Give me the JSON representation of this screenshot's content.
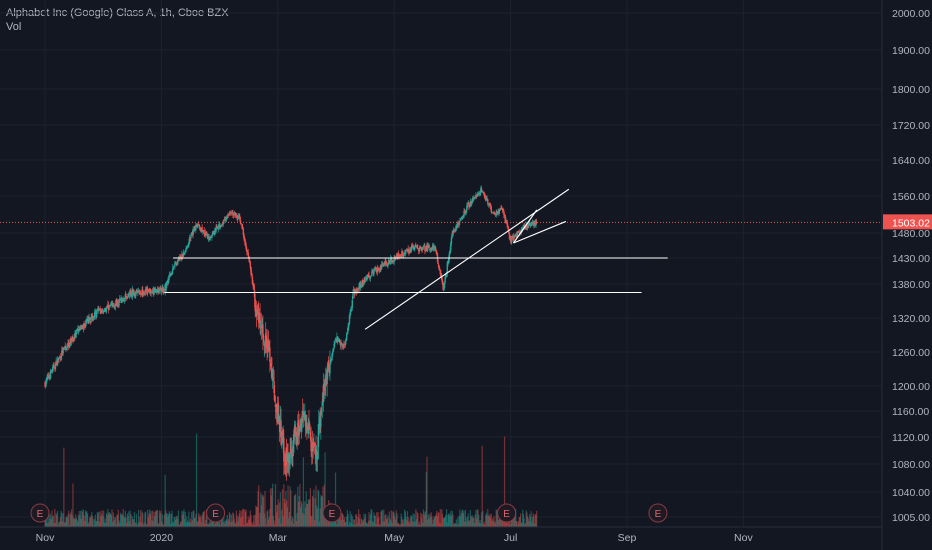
{
  "chart_data": {
    "type": "candlestick",
    "title": "Alphabet Inc (Google) Class A, 1h, Cboe BZX",
    "indicator": "Vol",
    "ylim": [
      995,
      2040
    ],
    "y_ticks": [
      "2000.00",
      "1900.00",
      "1800.00",
      "1720.00",
      "1640.00",
      "1560.00",
      "1480.00",
      "1430.00",
      "1380.00",
      "1320.00",
      "1260.00",
      "1200.00",
      "1160.00",
      "1120.00",
      "1080.00",
      "1040.00",
      "1005.00"
    ],
    "x_ticks": [
      "Nov",
      "2020",
      "Mar",
      "May",
      "Jul",
      "Sep",
      "Nov"
    ],
    "last_price": "1503.02",
    "price_path": [
      {
        "m": 0.0,
        "p": 1205
      },
      {
        "m": 0.3,
        "p": 1260
      },
      {
        "m": 0.6,
        "p": 1300
      },
      {
        "m": 0.9,
        "p": 1330
      },
      {
        "m": 1.2,
        "p": 1345
      },
      {
        "m": 1.5,
        "p": 1365
      },
      {
        "m": 1.8,
        "p": 1368
      },
      {
        "m": 2.05,
        "p": 1370
      },
      {
        "m": 2.2,
        "p": 1412
      },
      {
        "m": 2.4,
        "p": 1440
      },
      {
        "m": 2.6,
        "p": 1500
      },
      {
        "m": 2.8,
        "p": 1470
      },
      {
        "m": 3.0,
        "p": 1495
      },
      {
        "m": 3.2,
        "p": 1525
      },
      {
        "m": 3.35,
        "p": 1510
      },
      {
        "m": 3.5,
        "p": 1430
      },
      {
        "m": 3.65,
        "p": 1320
      },
      {
        "m": 3.85,
        "p": 1260
      },
      {
        "m": 4.0,
        "p": 1150
      },
      {
        "m": 4.15,
        "p": 1080
      },
      {
        "m": 4.3,
        "p": 1120
      },
      {
        "m": 4.45,
        "p": 1160
      },
      {
        "m": 4.65,
        "p": 1080
      },
      {
        "m": 4.8,
        "p": 1200
      },
      {
        "m": 5.0,
        "p": 1285
      },
      {
        "m": 5.15,
        "p": 1270
      },
      {
        "m": 5.3,
        "p": 1365
      },
      {
        "m": 5.6,
        "p": 1400
      },
      {
        "m": 6.0,
        "p": 1430
      },
      {
        "m": 6.3,
        "p": 1450
      },
      {
        "m": 6.7,
        "p": 1450
      },
      {
        "m": 6.85,
        "p": 1370
      },
      {
        "m": 7.0,
        "p": 1480
      },
      {
        "m": 7.3,
        "p": 1545
      },
      {
        "m": 7.5,
        "p": 1575
      },
      {
        "m": 7.7,
        "p": 1520
      },
      {
        "m": 7.85,
        "p": 1535
      },
      {
        "m": 8.0,
        "p": 1465
      },
      {
        "m": 8.2,
        "p": 1490
      },
      {
        "m": 8.45,
        "p": 1503
      }
    ],
    "drawings": [
      {
        "name": "resistance-line-upper",
        "from": {
          "m": 2.2,
          "p": 1430
        },
        "to": {
          "m": 10.7,
          "p": 1430
        }
      },
      {
        "name": "support-line-lower",
        "from": {
          "m": 2.05,
          "p": 1365
        },
        "to": {
          "m": 10.25,
          "p": 1365
        }
      },
      {
        "name": "uptrend-line",
        "from": {
          "m": 5.5,
          "p": 1300
        },
        "to": {
          "m": 9.0,
          "p": 1575
        }
      },
      {
        "name": "channel-upper-line",
        "from": {
          "m": 8.05,
          "p": 1460
        },
        "to": {
          "m": 8.95,
          "p": 1505
        }
      },
      {
        "name": "channel-lower-line",
        "from": {
          "m": 8.05,
          "p": 1460
        },
        "to": {
          "m": 8.45,
          "p": 1530
        }
      }
    ],
    "earnings_markers": [
      {
        "label": "E",
        "m": 0.0
      },
      {
        "label": "E",
        "m": 3.0
      },
      {
        "label": "E",
        "m": 5.0
      },
      {
        "label": "E",
        "m": 8.0
      },
      {
        "label": "E",
        "m": 10.6
      }
    ],
    "colors": {
      "up": "#26a69a",
      "down": "#ef5350",
      "background": "#131722",
      "price_line": "#ef5350",
      "drawings": "#ffffff",
      "text": "#b2b5be",
      "grid": "#1e222d"
    }
  }
}
